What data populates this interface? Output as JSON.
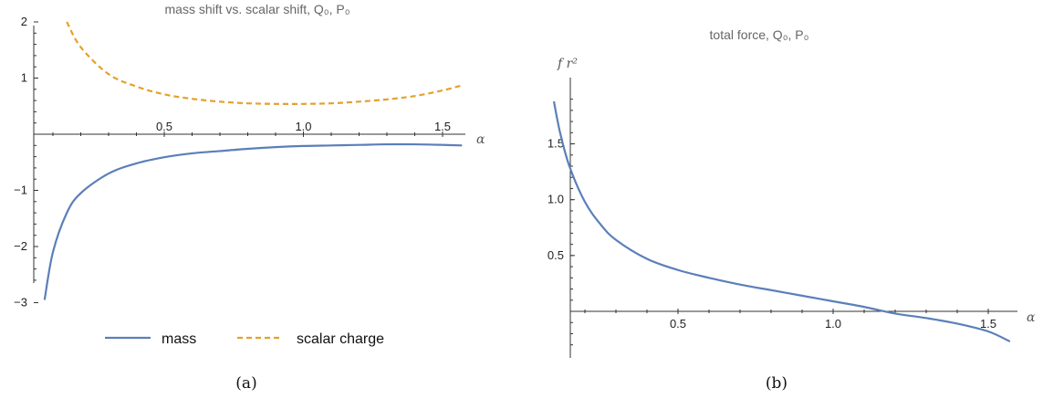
{
  "chart_data": [
    {
      "panel": "(a)",
      "type": "line",
      "title": "mass shift vs. scalar shift, Q₀, P₀",
      "xlabel": "α",
      "ylabel": "",
      "xlim": [
        0.05,
        1.6
      ],
      "ylim": [
        -3,
        2
      ],
      "xticks": [
        "0.5",
        "1.0",
        "1.5"
      ],
      "xtick_values": [
        0.5,
        1.0,
        1.5
      ],
      "yticks": [
        "2",
        "1",
        "−1",
        "−2",
        "−3"
      ],
      "ytick_values": [
        2,
        1,
        -1,
        -2,
        -3
      ],
      "legend": {
        "placement": "bottom",
        "entries": [
          "mass",
          "scalar charge"
        ]
      },
      "series": [
        {
          "name": "mass",
          "style": "solid",
          "color": "#5b7fb9",
          "x": [
            0.07,
            0.1,
            0.15,
            0.2,
            0.3,
            0.4,
            0.5,
            0.6,
            0.7,
            0.8,
            0.9,
            1.0,
            1.1,
            1.2,
            1.3,
            1.4,
            1.5,
            1.57
          ],
          "y": [
            -2.95,
            -2.1,
            -1.4,
            -1.05,
            -0.7,
            -0.52,
            -0.41,
            -0.34,
            -0.3,
            -0.26,
            -0.23,
            -0.21,
            -0.2,
            -0.19,
            -0.18,
            -0.18,
            -0.19,
            -0.2
          ]
        },
        {
          "name": "scalar charge",
          "style": "dashed",
          "color": "#e4a12b",
          "x": [
            0.15,
            0.2,
            0.3,
            0.4,
            0.5,
            0.6,
            0.7,
            0.8,
            0.9,
            1.0,
            1.1,
            1.2,
            1.3,
            1.4,
            1.5,
            1.57
          ],
          "y": [
            2.0,
            1.55,
            1.07,
            0.85,
            0.71,
            0.63,
            0.58,
            0.55,
            0.54,
            0.54,
            0.55,
            0.58,
            0.62,
            0.68,
            0.78,
            0.87
          ]
        }
      ],
      "caption": "(a)"
    },
    {
      "panel": "(b)",
      "type": "line",
      "title": "total force, Q₀, P₀",
      "xlabel": "α",
      "ylabel": "f r²",
      "xlim": [
        0.0,
        1.65
      ],
      "ylim": [
        -0.3,
        1.95
      ],
      "xticks": [
        "0.5",
        "1.0",
        "1.5"
      ],
      "xtick_values": [
        0.5,
        1.0,
        1.5
      ],
      "yticks": [
        "0.5",
        "1.0",
        "1.5"
      ],
      "ytick_values": [
        0.5,
        1.0,
        1.5
      ],
      "series": [
        {
          "name": "",
          "style": "solid",
          "color": "#5b7fb9",
          "x": [
            0.1,
            0.12,
            0.15,
            0.2,
            0.25,
            0.3,
            0.4,
            0.5,
            0.6,
            0.7,
            0.8,
            0.9,
            1.0,
            1.1,
            1.2,
            1.3,
            1.4,
            1.5,
            1.57
          ],
          "y": [
            1.88,
            1.6,
            1.3,
            0.98,
            0.78,
            0.64,
            0.47,
            0.37,
            0.3,
            0.24,
            0.19,
            0.14,
            0.09,
            0.04,
            -0.02,
            -0.06,
            -0.11,
            -0.18,
            -0.27
          ]
        }
      ],
      "caption": "(b)"
    }
  ]
}
